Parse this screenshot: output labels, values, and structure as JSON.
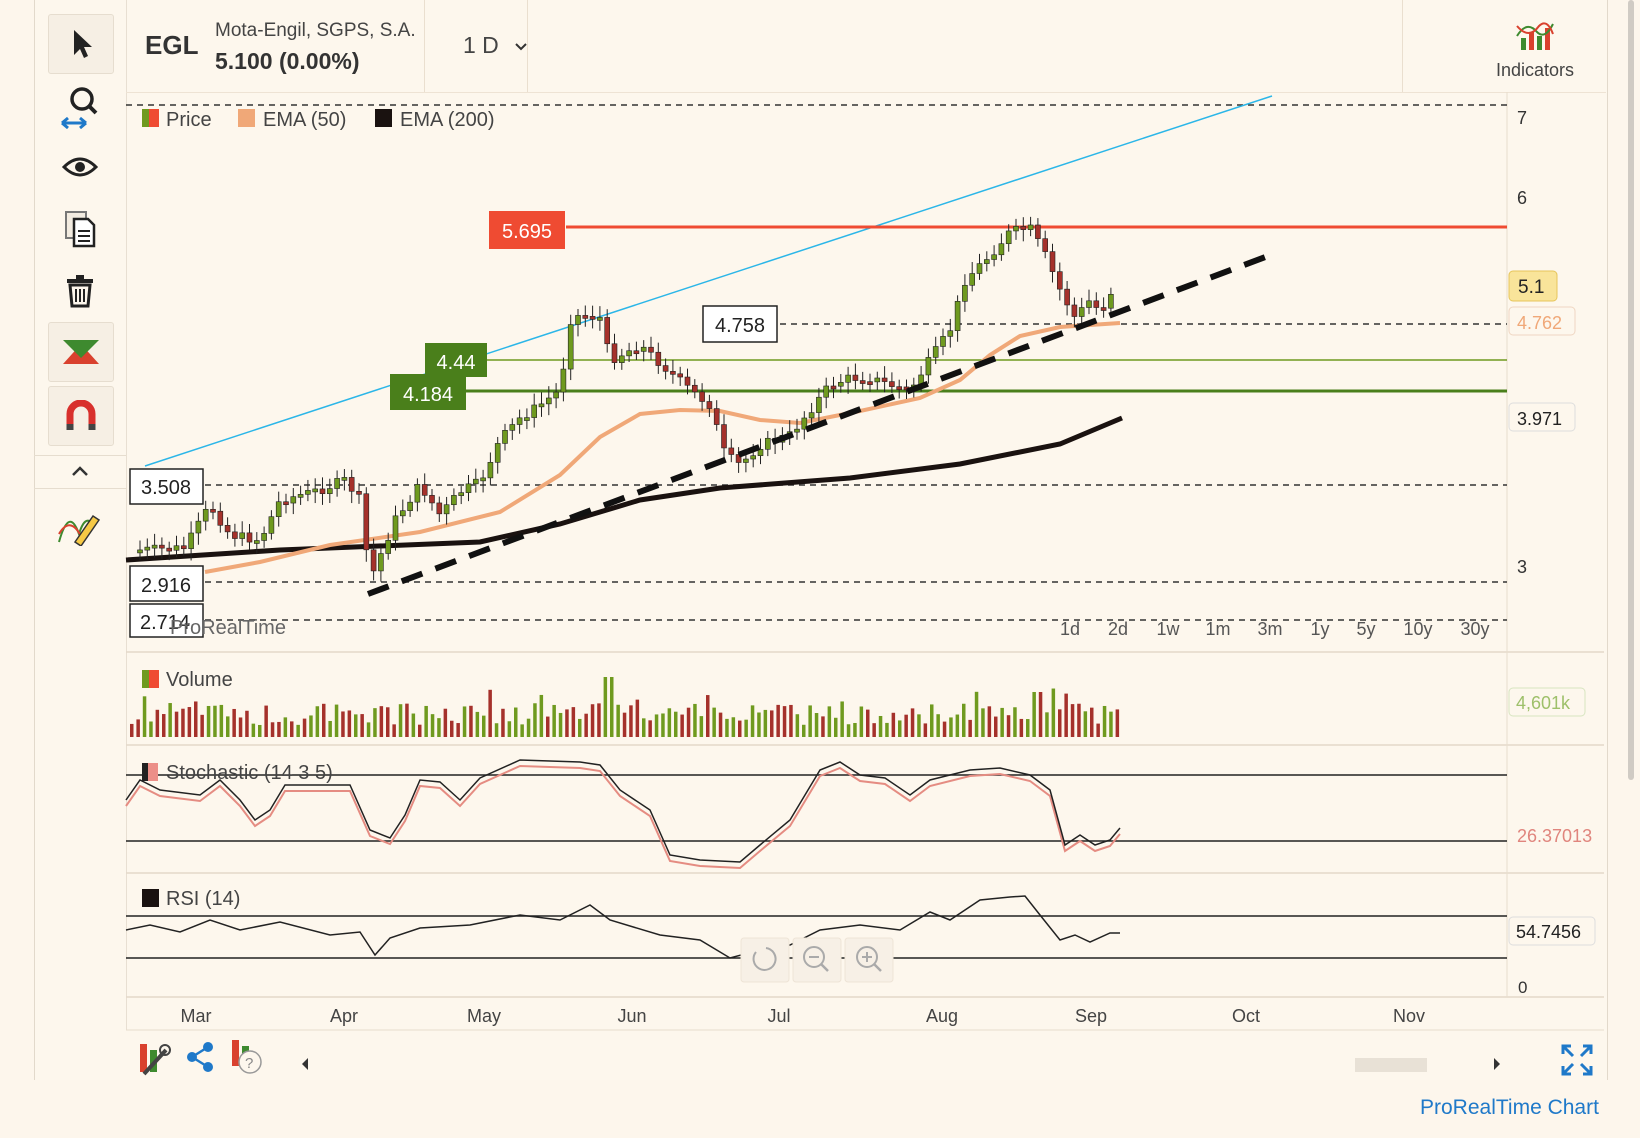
{
  "header": {
    "symbol": "EGL",
    "company": "Mota-Engil, SGPS, S.A.",
    "price_change": "5.100 (0.00%)",
    "timeframe": "1 D",
    "indicators_label": "Indicators"
  },
  "legend": {
    "price": "Price",
    "ema50": "EMA (50)",
    "ema200": "EMA (200)"
  },
  "price_axis": {
    "ticks": [
      "7",
      "6",
      "3"
    ],
    "last_price": "5.1",
    "ema50_value": "4.762",
    "ema200_value": "3.971"
  },
  "annotations": {
    "resistance": "5.695",
    "level_a": "4.44",
    "level_b": "4.184",
    "level_c": "4.758",
    "level_d": "3.508",
    "level_e": "2.916",
    "level_f": "2.714"
  },
  "watermark": "ProRealTime",
  "periods": [
    "1d",
    "2d",
    "1w",
    "1m",
    "3m",
    "1y",
    "5y",
    "10y",
    "30y"
  ],
  "panels": {
    "volume": {
      "title": "Volume",
      "value": "4,601k"
    },
    "stochastic": {
      "title": "Stochastic (14 3 5)",
      "value": "26.37013"
    },
    "rsi": {
      "title": "RSI (14)",
      "value": "54.7456",
      "zero": "0"
    }
  },
  "months": [
    "Mar",
    "Apr",
    "May",
    "Jun",
    "Jul",
    "Aug",
    "Sep",
    "Oct",
    "Nov"
  ],
  "footer": {
    "link": "ProRealTime Chart"
  },
  "colors": {
    "up": "#6f9a1f",
    "down": "#a5312b",
    "ema50": "#f0a878",
    "ema200": "#1a1210",
    "resistance": "#ef4b32",
    "support_green": "#4a7f1b",
    "channel": "#2bb6e8"
  },
  "icons": [
    "cursor-icon",
    "zoom-icon",
    "eye-icon",
    "copy-icon",
    "trash-icon",
    "trend-icon",
    "magnet-icon",
    "collapse-icon",
    "drawing-pen-icon",
    "indicators-icon",
    "tools-icon",
    "share-icon",
    "help-icon",
    "fullscreen-icon",
    "reset-icon",
    "zoom-out-icon",
    "zoom-in-icon"
  ]
}
